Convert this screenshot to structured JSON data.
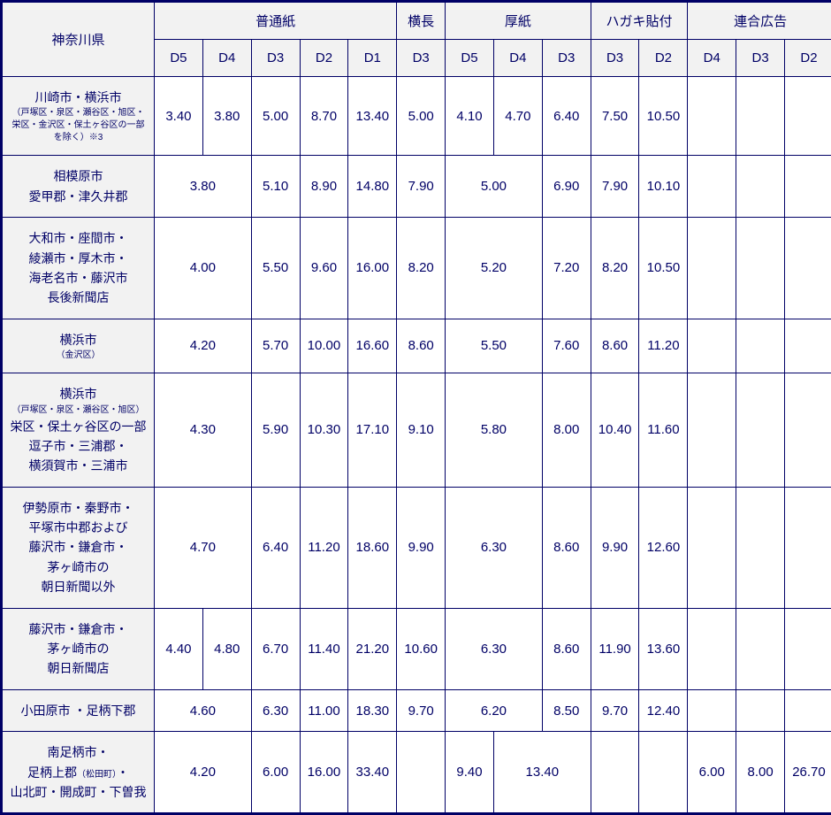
{
  "table": {
    "corner": "神奈川県",
    "groups": [
      {
        "label": "普通紙",
        "span": 5
      },
      {
        "label": "横長",
        "span": 1
      },
      {
        "label": "厚紙",
        "span": 3
      },
      {
        "label": "ハガキ貼付",
        "span": 2
      },
      {
        "label": "連合広告",
        "span": 3
      }
    ],
    "subheaders": [
      "D5",
      "D4",
      "D3",
      "D2",
      "D1",
      "D3",
      "D5",
      "D4",
      "D3",
      "D3",
      "D2",
      "D4",
      "D3",
      "D2"
    ],
    "rows": [
      {
        "region": {
          "main": "川崎市・横浜市",
          "small": "（戸塚区・泉区・瀬谷区・旭区・栄区・金沢区・保土ヶ谷区の一部を除く）※3"
        },
        "cells": [
          {
            "v": "3.40"
          },
          {
            "v": "3.80"
          },
          {
            "v": "5.00"
          },
          {
            "v": "8.70"
          },
          {
            "v": "13.40"
          },
          {
            "v": "5.00"
          },
          {
            "v": "4.10"
          },
          {
            "v": "4.70"
          },
          {
            "v": "6.40"
          },
          {
            "v": "7.50"
          },
          {
            "v": "10.50"
          },
          {
            "v": ""
          },
          {
            "v": ""
          },
          {
            "v": ""
          }
        ]
      },
      {
        "region": {
          "main": "相模原市\n愛甲郡・津久井郡"
        },
        "cells": [
          {
            "v": "3.80",
            "span": 2
          },
          {
            "v": "5.10"
          },
          {
            "v": "8.90"
          },
          {
            "v": "14.80"
          },
          {
            "v": "7.90"
          },
          {
            "v": "5.00",
            "span": 2
          },
          {
            "v": "6.90"
          },
          {
            "v": "7.90"
          },
          {
            "v": "10.10"
          },
          {
            "v": ""
          },
          {
            "v": ""
          },
          {
            "v": ""
          }
        ]
      },
      {
        "region": {
          "main": "大和市・座間市・\n綾瀬市・厚木市・\n海老名市・藤沢市\n長後新聞店"
        },
        "cells": [
          {
            "v": "4.00",
            "span": 2
          },
          {
            "v": "5.50"
          },
          {
            "v": "9.60"
          },
          {
            "v": "16.00"
          },
          {
            "v": "8.20"
          },
          {
            "v": "5.20",
            "span": 2
          },
          {
            "v": "7.20"
          },
          {
            "v": "8.20"
          },
          {
            "v": "10.50"
          },
          {
            "v": ""
          },
          {
            "v": ""
          },
          {
            "v": ""
          }
        ]
      },
      {
        "region": {
          "main": "横浜市",
          "small": "（金沢区）"
        },
        "cells": [
          {
            "v": "4.20",
            "span": 2
          },
          {
            "v": "5.70"
          },
          {
            "v": "10.00"
          },
          {
            "v": "16.60"
          },
          {
            "v": "8.60"
          },
          {
            "v": "5.50",
            "span": 2
          },
          {
            "v": "7.60"
          },
          {
            "v": "8.60"
          },
          {
            "v": "11.20"
          },
          {
            "v": ""
          },
          {
            "v": ""
          },
          {
            "v": ""
          }
        ]
      },
      {
        "region": {
          "main_pre": "横浜市",
          "small": "（戸塚区・泉区・瀬谷区・旭区）",
          "main": "栄区・保土ヶ谷区の一部\n逗子市・三浦郡・\n横須賀市・三浦市"
        },
        "cells": [
          {
            "v": "4.30",
            "span": 2
          },
          {
            "v": "5.90"
          },
          {
            "v": "10.30"
          },
          {
            "v": "17.10"
          },
          {
            "v": "9.10"
          },
          {
            "v": "5.80",
            "span": 2
          },
          {
            "v": "8.00"
          },
          {
            "v": "10.40"
          },
          {
            "v": "11.60"
          },
          {
            "v": ""
          },
          {
            "v": ""
          },
          {
            "v": ""
          }
        ]
      },
      {
        "region": {
          "main": "伊勢原市・秦野市・\n平塚市中郡および\n藤沢市・鎌倉市・\n茅ヶ崎市の\n朝日新聞以外"
        },
        "cells": [
          {
            "v": "4.70",
            "span": 2
          },
          {
            "v": "6.40"
          },
          {
            "v": "11.20"
          },
          {
            "v": "18.60"
          },
          {
            "v": "9.90"
          },
          {
            "v": "6.30",
            "span": 2
          },
          {
            "v": "8.60"
          },
          {
            "v": "9.90"
          },
          {
            "v": "12.60"
          },
          {
            "v": ""
          },
          {
            "v": ""
          },
          {
            "v": ""
          }
        ]
      },
      {
        "region": {
          "main": "藤沢市・鎌倉市・\n茅ヶ崎市の\n朝日新聞店"
        },
        "cells": [
          {
            "v": "4.40"
          },
          {
            "v": "4.80"
          },
          {
            "v": "6.70"
          },
          {
            "v": "11.40"
          },
          {
            "v": "21.20"
          },
          {
            "v": "10.60"
          },
          {
            "v": "6.30",
            "span": 2
          },
          {
            "v": "8.60"
          },
          {
            "v": "11.90"
          },
          {
            "v": "13.60"
          },
          {
            "v": ""
          },
          {
            "v": ""
          },
          {
            "v": ""
          }
        ]
      },
      {
        "region": {
          "main": "小田原市 ・足柄下郡"
        },
        "cells": [
          {
            "v": "4.60",
            "span": 2
          },
          {
            "v": "6.30"
          },
          {
            "v": "11.00"
          },
          {
            "v": "18.30"
          },
          {
            "v": "9.70"
          },
          {
            "v": "6.20",
            "span": 2
          },
          {
            "v": "8.50"
          },
          {
            "v": "9.70"
          },
          {
            "v": "12.40"
          },
          {
            "v": ""
          },
          {
            "v": ""
          },
          {
            "v": ""
          }
        ]
      },
      {
        "region": {
          "main_pre": "南足柄市・",
          "mixed": "足柄上郡",
          "mixed_small": "（松田町）",
          "mixed_after": "・",
          "main": "山北町・開成町・下曽我"
        },
        "cells": [
          {
            "v": "4.20",
            "span": 2
          },
          {
            "v": "6.00"
          },
          {
            "v": "16.00"
          },
          {
            "v": "33.40"
          },
          {
            "v": ""
          },
          {
            "v": "9.40"
          },
          {
            "v": "13.40",
            "span": 2
          },
          {
            "v": ""
          },
          {
            "v": ""
          },
          {
            "v": "6.00"
          },
          {
            "v": "8.00"
          },
          {
            "v": "26.70"
          }
        ]
      }
    ]
  },
  "style": {
    "border_color": "#000066",
    "text_color": "#000066",
    "header_bg": "#f2f2f2",
    "cell_bg": "#ffffff"
  }
}
